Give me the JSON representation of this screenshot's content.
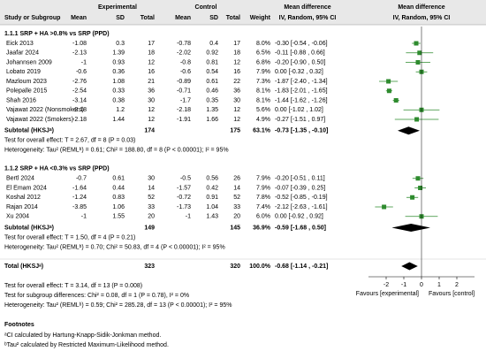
{
  "chart_data": {
    "type": "forest",
    "headers": {
      "study": "Study or Subgroup",
      "experimental": "Experimental",
      "control": "Control",
      "mean": "Mean",
      "sd": "SD",
      "total": "Total",
      "weight": "Weight",
      "md": "Mean difference",
      "method": "IV, Random, 95% CI"
    },
    "groups": [
      {
        "title": "1.1.1 SRP + HA >0.8% vs SRP (PPD)",
        "studies": [
          {
            "name": "Eick 2013",
            "e_mean": -1.08,
            "e_sd": 0.3,
            "e_total": 17,
            "c_mean": -0.78,
            "c_sd": 0.4,
            "c_total": 17,
            "weight": "8.0%",
            "ci": "-0.30 [-0.54 , -0.06]",
            "md": -0.3,
            "lo": -0.54,
            "hi": -0.06
          },
          {
            "name": "Jaafar 2024",
            "e_mean": -2.13,
            "e_sd": 1.39,
            "e_total": 18,
            "c_mean": -2.02,
            "c_sd": 0.92,
            "c_total": 18,
            "weight": "6.5%",
            "ci": "-0.11 [-0.88 , 0.66]",
            "md": -0.11,
            "lo": -0.88,
            "hi": 0.66
          },
          {
            "name": "Johannsen 2009",
            "e_mean": -1,
            "e_sd": 0.93,
            "e_total": 12,
            "c_mean": -0.8,
            "c_sd": 0.81,
            "c_total": 12,
            "weight": "6.8%",
            "ci": "-0.20 [-0.90 , 0.50]",
            "md": -0.2,
            "lo": -0.9,
            "hi": 0.5
          },
          {
            "name": "Lobato 2019",
            "e_mean": -0.6,
            "e_sd": 0.36,
            "e_total": 16,
            "c_mean": -0.6,
            "c_sd": 0.54,
            "c_total": 16,
            "weight": "7.9%",
            "ci": "0.00 [-0.32 , 0.32]",
            "md": 0.0,
            "lo": -0.32,
            "hi": 0.32
          },
          {
            "name": "Mazloum 2023",
            "e_mean": -2.76,
            "e_sd": 1.08,
            "e_total": 21,
            "c_mean": -0.89,
            "c_sd": 0.61,
            "c_total": 22,
            "weight": "7.3%",
            "ci": "-1.87 [-2.40 , -1.34]",
            "md": -1.87,
            "lo": -2.4,
            "hi": -1.34
          },
          {
            "name": "Polepalle 2015",
            "e_mean": -2.54,
            "e_sd": 0.33,
            "e_total": 36,
            "c_mean": -0.71,
            "c_sd": 0.46,
            "c_total": 36,
            "weight": "8.1%",
            "ci": "-1.83 [-2.01 , -1.65]",
            "md": -1.83,
            "lo": -2.01,
            "hi": -1.65
          },
          {
            "name": "Shah 2016",
            "e_mean": -3.14,
            "e_sd": 0.38,
            "e_total": 30,
            "c_mean": -1.7,
            "c_sd": 0.35,
            "c_total": 30,
            "weight": "8.1%",
            "ci": "-1.44 [-1.62 , -1.26]",
            "md": -1.44,
            "lo": -1.62,
            "hi": -1.26
          },
          {
            "name": "Vajawat 2022 (Nonsmokers)",
            "e_mean": -2.18,
            "e_sd": 1.2,
            "e_total": 12,
            "c_mean": -2.18,
            "c_sd": 1.35,
            "c_total": 12,
            "weight": "5.6%",
            "ci": "0.00 [-1.02 , 1.02]",
            "md": 0.0,
            "lo": -1.02,
            "hi": 1.02
          },
          {
            "name": "Vajawat 2022 (Smokers)",
            "e_mean": -2.18,
            "e_sd": 1.44,
            "e_total": 12,
            "c_mean": -1.91,
            "c_sd": 1.66,
            "c_total": 12,
            "weight": "4.9%",
            "ci": "-0.27 [-1.51 , 0.97]",
            "md": -0.27,
            "lo": -1.51,
            "hi": 0.97
          }
        ],
        "subtotal": {
          "name": "Subtotal (HKSJᵃ)",
          "e_total": 174,
          "c_total": 175,
          "weight": "63.1%",
          "ci": "-0.73 [-1.35 , -0.10]",
          "md": -0.73,
          "lo": -1.35,
          "hi": -0.1
        },
        "notes": [
          "Test for overall effect: T = 2.67, df = 8 (P = 0.03)",
          "Heterogeneity: Tau² (REMLᵇ) = 0.61; Chi² = 188.80, df = 8 (P < 0.00001); I² = 95%"
        ]
      },
      {
        "title": "1.1.2 SRP + HA <0.3% vs SRP (PPD)",
        "studies": [
          {
            "name": "Bertl 2024",
            "e_mean": -0.7,
            "e_sd": 0.61,
            "e_total": 30,
            "c_mean": -0.5,
            "c_sd": 0.56,
            "c_total": 26,
            "weight": "7.9%",
            "ci": "-0.20 [-0.51 , 0.11]",
            "md": -0.2,
            "lo": -0.51,
            "hi": 0.11
          },
          {
            "name": "El Emam 2024",
            "e_mean": -1.64,
            "e_sd": 0.44,
            "e_total": 14,
            "c_mean": -1.57,
            "c_sd": 0.42,
            "c_total": 14,
            "weight": "7.9%",
            "ci": "-0.07 [-0.39 , 0.25]",
            "md": -0.07,
            "lo": -0.39,
            "hi": 0.25
          },
          {
            "name": "Koshal 2012",
            "e_mean": -1.24,
            "e_sd": 0.83,
            "e_total": 52,
            "c_mean": -0.72,
            "c_sd": 0.91,
            "c_total": 52,
            "weight": "7.8%",
            "ci": "-0.52 [-0.85 , -0.19]",
            "md": -0.52,
            "lo": -0.85,
            "hi": -0.19
          },
          {
            "name": "Rajan 2014",
            "e_mean": -3.85,
            "e_sd": 1.06,
            "e_total": 33,
            "c_mean": -1.73,
            "c_sd": 1.04,
            "c_total": 33,
            "weight": "7.4%",
            "ci": "-2.12 [-2.63 , -1.61]",
            "md": -2.12,
            "lo": -2.63,
            "hi": -1.61
          },
          {
            "name": "Xu 2004",
            "e_mean": -1,
            "e_sd": 1.55,
            "e_total": 20,
            "c_mean": -1,
            "c_sd": 1.43,
            "c_total": 20,
            "weight": "6.0%",
            "ci": "0.00 [-0.92 , 0.92]",
            "md": 0.0,
            "lo": -0.92,
            "hi": 0.92
          }
        ],
        "subtotal": {
          "name": "Subtotal (HKSJᵃ)",
          "e_total": 149,
          "c_total": 145,
          "weight": "36.9%",
          "ci": "-0.59 [-1.68 , 0.50]",
          "md": -0.59,
          "lo": -1.68,
          "hi": 0.5
        },
        "notes": [
          "Test for overall effect: T = 1.50, df = 4 (P = 0.21)",
          "Heterogeneity: Tau² (REMLᵇ) = 0.70; Chi² = 50.83, df = 4 (P < 0.00001); I² = 95%"
        ]
      }
    ],
    "total": {
      "name": "Total (HKSJᵃ)",
      "e_total": 323,
      "c_total": 320,
      "weight": "100.0%",
      "ci": "-0.68 [-1.14 , -0.21]",
      "md": -0.68,
      "lo": -1.14,
      "hi": -0.21
    },
    "total_notes": [
      "Test for overall effect: T = 3.14, df = 13 (P = 0.008)",
      "Test for subgroup differences: Chi² = 0.08, df = 1 (P = 0.78), I² = 0%",
      "Heterogeneity: Tau² (REMLᵇ) = 0.59; Chi² = 285.28, df = 13 (P < 0.00001); I² = 95%"
    ],
    "xlim": [
      -3,
      3
    ],
    "xticks": [
      -2,
      -1,
      0,
      1,
      2
    ],
    "favours_left": "Favours [experimental]",
    "favours_right": "Favours [control]",
    "study_color": "#2e8b2e",
    "summary_color": "#000000",
    "footnotes": {
      "title": "Footnotes",
      "lines": [
        "ᵃCI calculated by Hartung-Knapp-Sidik-Jonkman method.",
        "ᵇTau² calculated by Restricted Maximum-Likelihood method."
      ]
    }
  }
}
